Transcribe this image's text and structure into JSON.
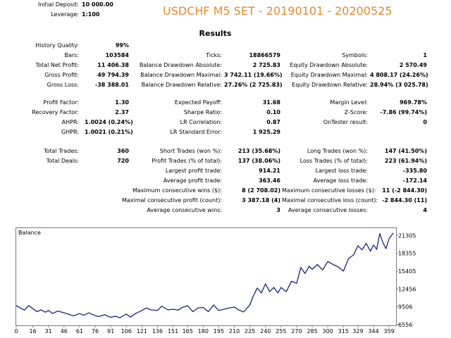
{
  "header": {
    "initial_deposit_label": "Initial Deposit:",
    "initial_deposit_value": "10 000.00",
    "leverage_label": "Leverage:",
    "leverage_value": "1:100",
    "title": "USDCHF M5 SET - 20190101 - 20200525",
    "title_color": "#e8892b"
  },
  "results_heading": "Results",
  "col1": [
    {
      "label": "History Quality:",
      "value": "99%"
    },
    {
      "label": "Bars:",
      "value": "103584"
    },
    {
      "label": "Total Net Profit:",
      "value": "11 406.38"
    },
    {
      "label": "Gross Profit:",
      "value": "49 794.39"
    },
    {
      "label": "Gross Loss:",
      "value": "-38 388.01"
    },
    {
      "label": "Profit Factor:",
      "value": "1.30"
    },
    {
      "label": "Recovery Factor:",
      "value": "2.37"
    },
    {
      "label": "AHPR:",
      "value": "1.0024 (0.24%)"
    },
    {
      "label": "GHPR:",
      "value": "1.0021 (0.21%)"
    },
    {
      "label": "Total Trades:",
      "value": "360"
    },
    {
      "label": "Total Deals:",
      "value": "720"
    }
  ],
  "col2": [
    {
      "label": "Ticks:",
      "value": "18866579"
    },
    {
      "label": "Balance Drawdown Absolute:",
      "value": "2 725.83"
    },
    {
      "label": "Balance Drawdown Maximal:",
      "value": "3 742.11 (19.66%)"
    },
    {
      "label": "Balance Drawdown Relative:",
      "value": "27.26% (2 725.83)"
    },
    {
      "label": "Expected Payoff:",
      "value": "31.68"
    },
    {
      "label": "Sharpe Ratio:",
      "value": "0.10"
    },
    {
      "label": "LR Correlation:",
      "value": "0.87"
    },
    {
      "label": "LR Standard Error:",
      "value": "1 925.29"
    },
    {
      "label": "Short Trades (won %):",
      "value": "213 (35.68%)"
    },
    {
      "label": "Profit Trades (% of total):",
      "value": "137 (38.06%)"
    },
    {
      "label": "Largest profit trade:",
      "value": "914.21"
    },
    {
      "label": "Average profit trade:",
      "value": "363.46"
    },
    {
      "label": "Maximum consecutive wins ($):",
      "value": "8 (2 708.02)"
    },
    {
      "label": "Maximal consecutive profit (count):",
      "value": "3 387.18 (4)"
    },
    {
      "label": "Average consecutive wins:",
      "value": "3"
    }
  ],
  "col3": [
    {
      "label": "Symbols:",
      "value": "1"
    },
    {
      "label": "Equity Drawdown Absolute:",
      "value": "2 570.49"
    },
    {
      "label": "Equity Drawdown Maximal:",
      "value": "4 808.17 (24.26%)"
    },
    {
      "label": "Equity Drawdown Relative:",
      "value": "28.94% (3 025.78)"
    },
    {
      "label": "Margin Level:",
      "value": "969.78%"
    },
    {
      "label": "Z-Score:",
      "value": "-7.86 (99.74%)"
    },
    {
      "label": "OnTester result:",
      "value": "0"
    },
    {
      "label": "Long Trades (won %):",
      "value": "147 (41.50%)"
    },
    {
      "label": "Loss Trades (% of total):",
      "value": "223 (61.94%)"
    },
    {
      "label": "Largest loss trade:",
      "value": "-335.80"
    },
    {
      "label": "Average loss trade:",
      "value": "-172.14"
    },
    {
      "label": "Maximum consecutive losses ($):",
      "value": "11 (-2 844.30)"
    },
    {
      "label": "Maximal consecutive loss (count):",
      "value": "-2 844.30 (11)"
    },
    {
      "label": "Average consecutive losses:",
      "value": "4"
    }
  ],
  "chart_data": {
    "type": "line",
    "legend": "Balance",
    "line_color": "#1a237e",
    "xticks": [
      "0",
      "16",
      "31",
      "46",
      "61",
      "76",
      "91",
      "106",
      "121",
      "136",
      "151",
      "165",
      "180",
      "195",
      "210",
      "225",
      "240",
      "255",
      "270",
      "285",
      "300",
      "315",
      "329",
      "344",
      "359"
    ],
    "yticks": [
      "21305",
      "18355",
      "15405",
      "12456",
      "9506",
      "6556"
    ],
    "xlim": [
      0,
      365
    ],
    "ylim": [
      6556,
      22500
    ],
    "x": [
      0,
      4,
      8,
      12,
      16,
      20,
      24,
      28,
      31,
      35,
      40,
      46,
      50,
      55,
      61,
      65,
      70,
      76,
      80,
      85,
      91,
      95,
      100,
      106,
      110,
      115,
      121,
      125,
      130,
      136,
      140,
      146,
      151,
      156,
      160,
      165,
      170,
      175,
      180,
      185,
      190,
      195,
      200,
      205,
      210,
      214,
      219,
      225,
      228,
      232,
      236,
      240,
      244,
      248,
      252,
      255,
      260,
      265,
      270,
      274,
      278,
      282,
      285,
      290,
      295,
      300,
      305,
      310,
      315,
      320,
      325,
      329,
      333,
      337,
      341,
      344,
      347,
      350,
      353,
      356,
      359,
      363
    ],
    "y": [
      9700,
      9300,
      8950,
      9700,
      9200,
      8700,
      9000,
      8600,
      8900,
      8400,
      8800,
      8500,
      8300,
      8000,
      8400,
      8100,
      8500,
      8050,
      7900,
      8200,
      7750,
      7950,
      7700,
      8300,
      7800,
      8400,
      8900,
      9300,
      9000,
      8900,
      9600,
      9000,
      9100,
      8950,
      9400,
      9700,
      8700,
      9300,
      9400,
      8700,
      9800,
      8900,
      9100,
      9300,
      9450,
      9000,
      8650,
      9800,
      11200,
      12600,
      11800,
      13300,
      12000,
      12700,
      11800,
      12700,
      12000,
      13700,
      13400,
      16000,
      15000,
      16200,
      15700,
      16500,
      15600,
      17000,
      16500,
      16100,
      15400,
      17500,
      18100,
      19600,
      18900,
      20000,
      18700,
      19700,
      19000,
      21600,
      20100,
      19100,
      20800,
      21700
    ]
  }
}
